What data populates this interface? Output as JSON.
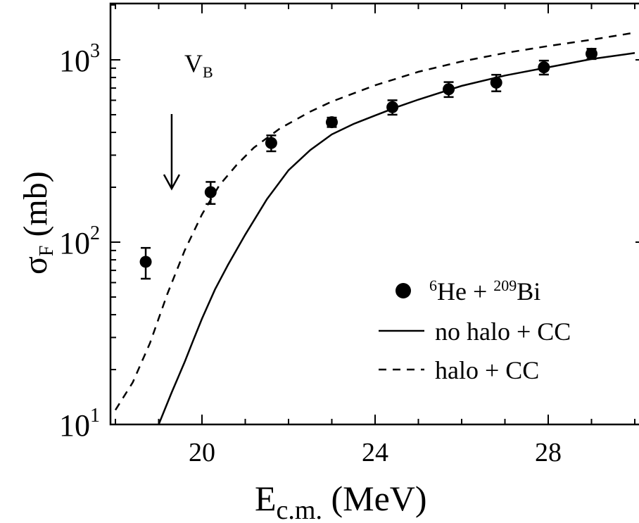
{
  "chart_data": {
    "type": "scatter",
    "title": "",
    "xlabel": {
      "main": "E",
      "sub": "c.m.",
      "rest": " (MeV)"
    },
    "ylabel": {
      "main": "σ",
      "sub": "F",
      "rest": " (mb)"
    },
    "xlim": [
      18,
      30
    ],
    "ylim": [
      10,
      2000
    ],
    "yscale": "log",
    "grid": false,
    "legend_position": "bottom-right",
    "x_ticks": [
      {
        "value": 20,
        "label": "20"
      },
      {
        "value": 24,
        "label": "24"
      },
      {
        "value": 28,
        "label": "28"
      }
    ],
    "y_ticks": [
      {
        "value": 10,
        "base": "10",
        "exp": "1"
      },
      {
        "value": 100,
        "base": "10",
        "exp": "2"
      },
      {
        "value": 1000,
        "base": "10",
        "exp": "3"
      }
    ],
    "annotation": {
      "main": "V",
      "sub": "B",
      "x": 19.3
    },
    "series": [
      {
        "name": {
          "pre_sup": "6",
          "mid": "He + ",
          "sup2": "209",
          "post": "Bi"
        },
        "kind": "points",
        "x": [
          18.7,
          20.2,
          21.6,
          23.0,
          24.4,
          25.7,
          26.8,
          27.9,
          29.0
        ],
        "y": [
          78,
          188,
          350,
          455,
          550,
          690,
          750,
          910,
          1080
        ],
        "y_low": [
          63,
          162,
          315,
          428,
          500,
          625,
          672,
          830,
          1010
        ],
        "y_high": [
          93,
          214,
          385,
          482,
          600,
          755,
          828,
          990,
          1150
        ]
      },
      {
        "name": "no halo + CC",
        "kind": "line",
        "style": "solid",
        "x": [
          19.0,
          19.3,
          19.6,
          19.8,
          20.0,
          20.3,
          20.6,
          21.0,
          21.5,
          22.0,
          22.5,
          23.0,
          23.5,
          24.0,
          24.5,
          25.0,
          26.0,
          27.0,
          28.0,
          29.0,
          30.0
        ],
        "y": [
          10,
          15,
          22,
          29,
          38,
          55,
          75,
          110,
          172,
          248,
          320,
          390,
          445,
          495,
          550,
          605,
          720,
          820,
          910,
          1010,
          1090
        ]
      },
      {
        "name": "halo + CC",
        "kind": "line",
        "style": "dashed",
        "x": [
          18.0,
          18.4,
          18.8,
          19.2,
          19.6,
          20.0,
          20.4,
          20.8,
          21.2,
          21.8,
          22.5,
          23.0,
          24.0,
          25.0,
          26.0,
          27.0,
          28.0,
          29.0,
          30.0
        ],
        "y": [
          12,
          17,
          28,
          52,
          90,
          142,
          205,
          265,
          330,
          420,
          520,
          590,
          725,
          860,
          980,
          1090,
          1190,
          1290,
          1410
        ]
      }
    ]
  }
}
